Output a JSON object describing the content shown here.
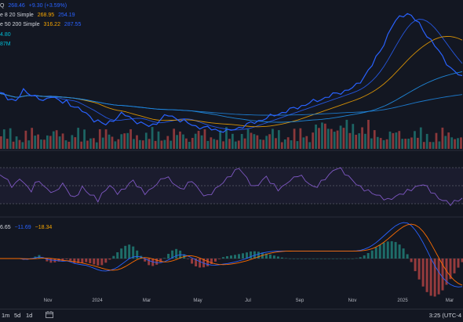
{
  "legend": {
    "symbol_fragment": "Q",
    "price": "268.46",
    "change": "+9.30 (+3.59%)",
    "sma20_label": "e 8 20 Simple",
    "sma20_val1": "268.95",
    "sma20_val2": "254.19",
    "sma50_label": "e 50 200 Simple",
    "sma50_val1": "316.22",
    "sma50_val2": "287.55",
    "extra1": "4.80",
    "volume": "87M",
    "macd_fragment": "6.65",
    "macd_signal": "−11.69",
    "macd_hist": "−18.34"
  },
  "xaxis": {
    "labels": [
      "Nov",
      "2024",
      "Mar",
      "May",
      "Jul",
      "Sep",
      "Nov",
      "2025",
      "Mar"
    ]
  },
  "toolbar": {
    "ranges": [
      "1m",
      "5d",
      "1d"
    ],
    "clock": "3:25 (UTC-4"
  },
  "colors": {
    "bg": "#131722",
    "price": "#2962ff",
    "sma_fast": "#2962ff",
    "sma_orange": "#f7a600",
    "sma_slow": "#2196f3",
    "up": "#26a69a",
    "down": "#ef5350",
    "rsi": "#7e57c2",
    "macd": "#2962ff",
    "signal": "#ff6d00"
  },
  "chart_data": {
    "type": "line",
    "note_series": "Stock price with moving averages, volume, RSI and MACD panes",
    "price": [
      244,
      242,
      238,
      236,
      233,
      240,
      248,
      246,
      243,
      240,
      236,
      232,
      236,
      242,
      238,
      234,
      230,
      232,
      228,
      226,
      222,
      218,
      214,
      210,
      206,
      204,
      200,
      198,
      202,
      206,
      210,
      214,
      212,
      209,
      206,
      203,
      200,
      198,
      196,
      198,
      202,
      206,
      210,
      212,
      210,
      208,
      205,
      203,
      200,
      198,
      196,
      195,
      194,
      193,
      192,
      191,
      190,
      189,
      188,
      190,
      192,
      194,
      196,
      198,
      200,
      202,
      204,
      206,
      208,
      210,
      212,
      214,
      216,
      218,
      220,
      222,
      224,
      226,
      228,
      230,
      232,
      234,
      236,
      238,
      240,
      242,
      244,
      246,
      248,
      250,
      252,
      256,
      262,
      270,
      278,
      286,
      296,
      306,
      318,
      330,
      342,
      350,
      356,
      360,
      362,
      358,
      352,
      346,
      338,
      330,
      322,
      314,
      306,
      298,
      290,
      282,
      276,
      272,
      268
    ],
    "rsi": [
      62,
      60,
      55,
      50,
      52,
      58,
      54,
      48,
      45,
      52,
      56,
      50,
      46,
      44,
      42,
      48,
      52,
      46,
      40,
      36,
      42,
      48,
      44,
      40,
      38,
      34,
      40,
      46,
      50,
      46,
      42,
      44,
      48,
      52,
      56,
      50,
      46,
      42,
      44,
      48,
      52,
      56,
      60,
      58,
      54,
      50,
      46,
      48,
      52,
      56,
      50,
      44,
      40,
      38,
      42,
      46,
      50,
      54,
      58,
      62,
      66,
      70,
      64,
      58,
      52,
      48,
      52,
      56,
      60,
      54,
      50,
      46,
      48,
      52,
      56,
      58,
      62,
      60,
      56,
      52,
      48,
      50,
      54,
      58,
      62,
      66,
      70,
      68,
      64,
      60,
      56,
      52,
      48,
      46,
      44,
      42,
      40,
      38,
      36,
      34,
      36,
      38,
      40,
      42,
      44,
      46,
      48,
      50,
      52,
      48,
      44,
      40,
      36,
      34,
      32,
      30,
      32,
      34,
      36
    ]
  }
}
